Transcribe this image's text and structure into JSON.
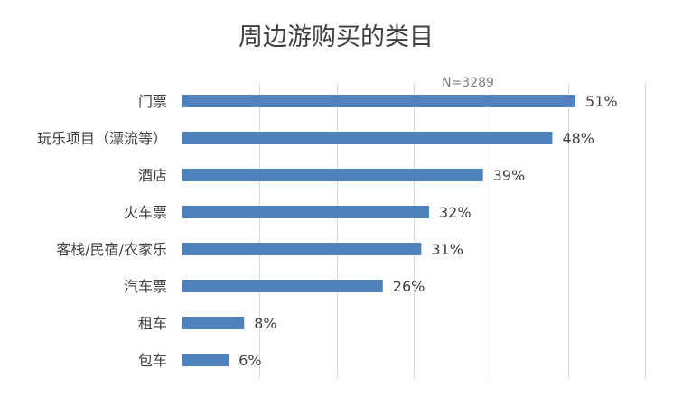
{
  "chart_data": {
    "type": "bar",
    "orientation": "horizontal",
    "title": "周边游购买的类目",
    "note": "N=3289",
    "categories": [
      "门票",
      "玩乐项目（漂流等）",
      "酒店",
      "火车票",
      "客栈/民宿/农家乐",
      "汽车票",
      "租车",
      "包车"
    ],
    "values": [
      51,
      48,
      39,
      32,
      31,
      26,
      8,
      6
    ],
    "value_labels": [
      "51%",
      "48%",
      "39%",
      "32%",
      "31%",
      "26%",
      "8%",
      "6%"
    ],
    "unit": "%",
    "xlim": [
      0,
      60
    ],
    "grid_values": [
      10,
      20,
      30,
      40,
      50,
      60
    ],
    "grid": true,
    "legend": "none",
    "bar_color": "#4f81bd"
  }
}
